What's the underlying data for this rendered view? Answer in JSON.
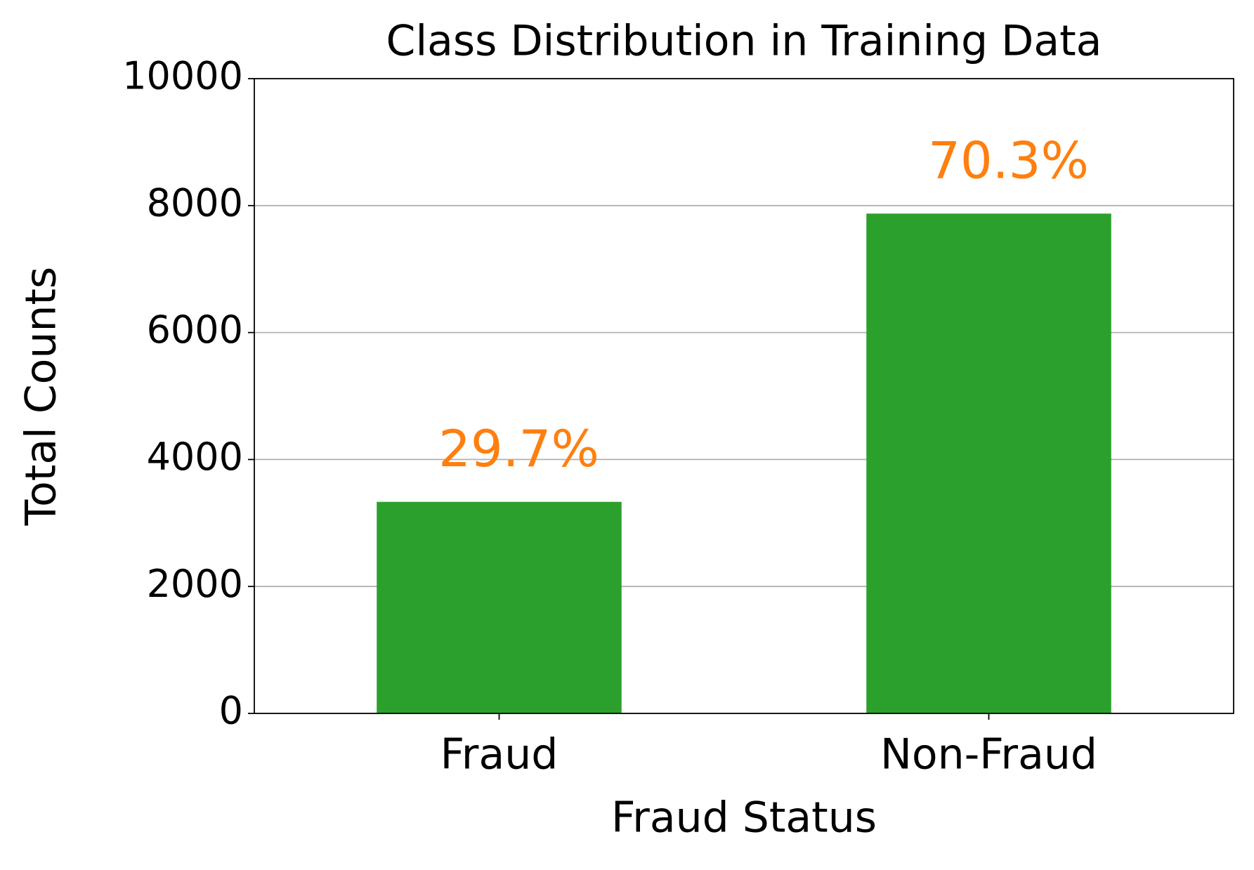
{
  "chart_data": {
    "type": "bar",
    "title": "Class Distribution in Training Data",
    "x_label": "Fraud Status",
    "y_label": "Total Counts",
    "categories": [
      "Fraud",
      "Non-Fraud"
    ],
    "values": [
      3333,
      7874
    ],
    "annotations": [
      "29.7%",
      "70.3%"
    ],
    "annotation_color": "#ff7f0e",
    "color": "#2ca02c",
    "ylim": [
      0,
      10000
    ],
    "yticks": [
      0,
      2000,
      4000,
      6000,
      8000,
      10000
    ],
    "grid": true
  }
}
